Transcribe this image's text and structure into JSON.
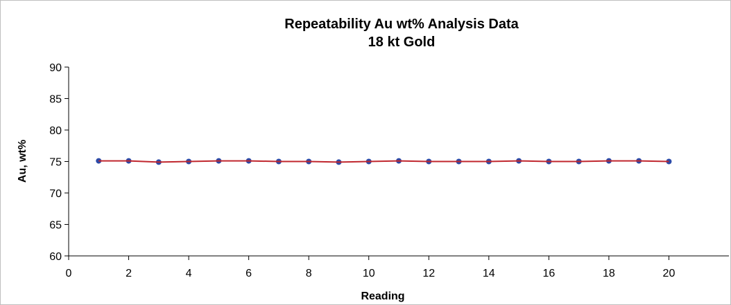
{
  "chart_data": {
    "type": "scatter",
    "title": "Repeatability Au wt% Analysis Data",
    "subtitle": "18 kt Gold",
    "xlabel": "Reading",
    "ylabel": "Au, wt%",
    "xlim": [
      0,
      22
    ],
    "ylim": [
      60,
      90
    ],
    "xticks": [
      0,
      2,
      4,
      6,
      8,
      10,
      12,
      14,
      16,
      18,
      20
    ],
    "yticks": [
      60,
      65,
      70,
      75,
      80,
      85,
      90
    ],
    "grid": false,
    "legend": "none",
    "series": [
      {
        "x": [
          1,
          2,
          3,
          4,
          5,
          6,
          7,
          8,
          9,
          10,
          11,
          12,
          13,
          14,
          15,
          16,
          17,
          18,
          19,
          20
        ],
        "y": [
          75.1,
          75.1,
          74.9,
          75.0,
          75.1,
          75.1,
          75.0,
          75.0,
          74.9,
          75.0,
          75.1,
          75.0,
          75.0,
          75.0,
          75.1,
          75.0,
          75.0,
          75.1,
          75.1,
          75.0
        ],
        "color": "#c0262d",
        "marker_color": "#2b4aa8",
        "style": "line-with-markers"
      }
    ]
  }
}
